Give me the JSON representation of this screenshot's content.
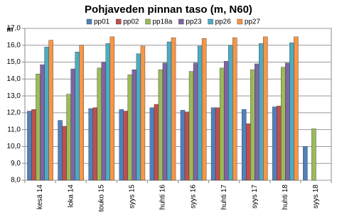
{
  "chart_data": {
    "type": "bar",
    "title": "Pohjaveden pinnan taso (m, N60)",
    "y_label": "m",
    "categories": [
      "kesä 14",
      "loka 14",
      "touko 15",
      "syys 15",
      "huhti 16",
      "syys 16",
      "huhti 17",
      "syys 17",
      "huhti 18",
      "syys 18"
    ],
    "series": [
      {
        "name": "pp01",
        "color": "#4f81bd",
        "values": [
          12.1,
          11.55,
          12.25,
          12.2,
          12.3,
          12.15,
          12.3,
          12.2,
          12.35,
          10.0
        ]
      },
      {
        "name": "pp02",
        "color": "#c0504d",
        "values": [
          12.2,
          11.2,
          12.3,
          12.1,
          12.5,
          12.05,
          12.3,
          11.35,
          12.4,
          null
        ]
      },
      {
        "name": "pp18a",
        "color": "#9bbb59",
        "values": [
          14.3,
          13.1,
          14.65,
          14.25,
          14.55,
          14.45,
          14.65,
          14.55,
          14.7,
          11.05
        ]
      },
      {
        "name": "pp23",
        "color": "#8064a2",
        "values": [
          14.85,
          14.6,
          15.0,
          14.55,
          14.95,
          14.95,
          15.05,
          14.9,
          14.95,
          null
        ]
      },
      {
        "name": "pp26",
        "color": "#4bacc6",
        "values": [
          15.9,
          15.6,
          16.1,
          15.5,
          16.2,
          15.95,
          16.0,
          16.1,
          16.15,
          null
        ]
      },
      {
        "name": "pp27",
        "color": "#f79646",
        "values": [
          16.3,
          16.0,
          16.5,
          15.95,
          16.45,
          16.4,
          16.45,
          16.5,
          16.5,
          null
        ]
      }
    ],
    "ylim": [
      8,
      17
    ],
    "yticks": [
      {
        "value": 8,
        "label": "8,0"
      },
      {
        "value": 9,
        "label": "9,0"
      },
      {
        "value": 10,
        "label": "10,0"
      },
      {
        "value": 11,
        "label": "11,0"
      },
      {
        "value": 12,
        "label": "12,0"
      },
      {
        "value": 13,
        "label": "13,0"
      },
      {
        "value": 14,
        "label": "14,0"
      },
      {
        "value": 15,
        "label": "15,0"
      },
      {
        "value": 16,
        "label": "16,0"
      },
      {
        "value": 17,
        "label": "17,0"
      }
    ],
    "grid": true,
    "legend": "top"
  }
}
